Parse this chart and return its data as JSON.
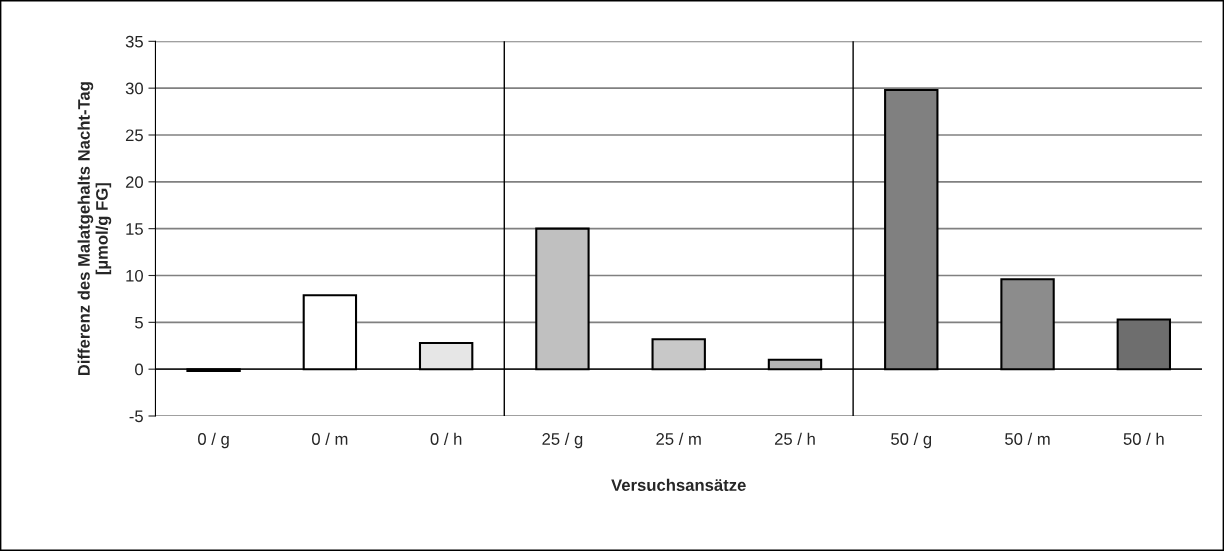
{
  "chart_data": {
    "type": "bar",
    "xlabel": "Versuchsansätze",
    "ylabel": "Differenz des Malatgehalts Nacht-Tag\n[µmol/g FG]",
    "categories": [
      "0 / g",
      "0 / m",
      "0 / h",
      "25 / g",
      "25 / m",
      "25 / h",
      "50 / g",
      "50 / m",
      "50 / h"
    ],
    "values": [
      -0.2,
      7.9,
      2.8,
      15,
      3.2,
      1.0,
      29.8,
      9.6,
      5.3
    ],
    "colors": [
      "#000000",
      "#ffffff",
      "#e6e6e6",
      "#c0c0c0",
      "#c8c8c8",
      "#b4b4b4",
      "#808080",
      "#8c8c8c",
      "#6e6e6e"
    ],
    "ylim": [
      -5,
      35
    ],
    "yticks": [
      -5,
      0,
      5,
      10,
      15,
      20,
      25,
      30,
      35
    ],
    "grid": "y"
  }
}
